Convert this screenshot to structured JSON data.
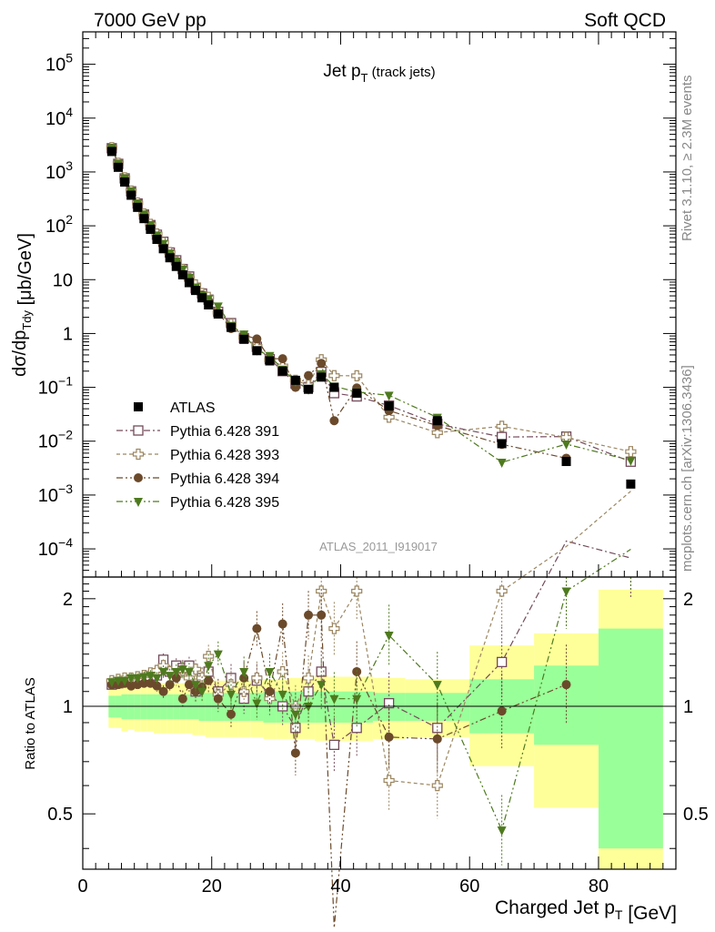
{
  "header": {
    "left": "7000 GeV pp",
    "right": "Soft QCD"
  },
  "side_labels": {
    "rivet": "Rivet 3.1.10, ≥ 2.3M events",
    "mcplots": "mcplots.cern.ch [arXiv:1306.3436]"
  },
  "analysis_id": "ATLAS_2011_I919017",
  "chart_data": {
    "type": "scatter",
    "title": "Jet p_T (track jets)",
    "xlabel": "Charged Jet p_T [GeV]",
    "ylabel": "dσ/dp_Tdy [μb/GeV]",
    "ratio_ylabel": "Ratio to ATLAS",
    "xlim": [
      0,
      92
    ],
    "ylim": [
      3e-05,
      400000
    ],
    "ratio_ylim": [
      0.35,
      2.3
    ],
    "yscale": "log",
    "grid": false,
    "legend_position": "bottom-left",
    "x_ticks": [
      "0",
      "20",
      "40",
      "60",
      "80"
    ],
    "y_ticks": [
      "10^-4",
      "10^-3",
      "10^-2",
      "10^-1",
      "1",
      "10",
      "10^2",
      "10^3",
      "10^4",
      "10^5"
    ],
    "ratio_ticks": [
      "0.5",
      "1",
      "2"
    ],
    "x": [
      4.5,
      5.5,
      6.5,
      7.5,
      8.5,
      9.5,
      10.5,
      11.5,
      12.5,
      13.5,
      14.5,
      15.5,
      16.5,
      17.5,
      18.5,
      19.5,
      21,
      23,
      25,
      27,
      29,
      31,
      33,
      35,
      37,
      39,
      42.5,
      47.5,
      55,
      65,
      75,
      85
    ],
    "x_bin_edges": [
      4,
      5,
      6,
      7,
      8,
      9,
      10,
      11,
      12,
      13,
      14,
      15,
      16,
      17,
      18,
      19,
      20,
      22,
      24,
      26,
      28,
      30,
      32,
      34,
      36,
      38,
      40,
      45,
      50,
      60,
      70,
      80,
      90
    ],
    "data_series": {
      "name": "ATLAS",
      "color": "#000000",
      "values": [
        2400,
        1220,
        650,
        370,
        220,
        136,
        86,
        56,
        37.5,
        25.5,
        17.6,
        12.3,
        8.8,
        6.3,
        4.6,
        3.4,
        2.3,
        1.3,
        0.78,
        0.48,
        0.31,
        0.2,
        0.135,
        0.092,
        0.155,
        0.1,
        0.078,
        0.045,
        0.024,
        0.009,
        0.0042,
        0.0016
      ],
      "band_inner": [
        [
          0.93,
          1.07
        ],
        [
          0.93,
          1.07
        ],
        [
          0.92,
          1.08
        ],
        [
          0.92,
          1.08
        ],
        [
          0.92,
          1.08
        ],
        [
          0.92,
          1.08
        ],
        [
          0.92,
          1.08
        ],
        [
          0.92,
          1.08
        ],
        [
          0.92,
          1.08
        ],
        [
          0.92,
          1.08
        ],
        [
          0.92,
          1.08
        ],
        [
          0.92,
          1.08
        ],
        [
          0.92,
          1.08
        ],
        [
          0.92,
          1.08
        ],
        [
          0.91,
          1.09
        ],
        [
          0.91,
          1.09
        ],
        [
          0.91,
          1.09
        ],
        [
          0.91,
          1.09
        ],
        [
          0.91,
          1.09
        ],
        [
          0.91,
          1.09
        ],
        [
          0.9,
          1.1
        ],
        [
          0.9,
          1.1
        ],
        [
          0.9,
          1.1
        ],
        [
          0.9,
          1.1
        ],
        [
          0.9,
          1.1
        ],
        [
          0.9,
          1.1
        ],
        [
          0.9,
          1.1
        ],
        [
          0.91,
          1.09
        ],
        [
          0.91,
          1.09
        ],
        [
          0.84,
          1.19
        ],
        [
          0.78,
          1.3
        ],
        [
          0.4,
          1.65
        ]
      ],
      "band_outer": [
        [
          0.87,
          1.15
        ],
        [
          0.87,
          1.15
        ],
        [
          0.85,
          1.16
        ],
        [
          0.86,
          1.16
        ],
        [
          0.85,
          1.16
        ],
        [
          0.85,
          1.16
        ],
        [
          0.85,
          1.16
        ],
        [
          0.84,
          1.16
        ],
        [
          0.84,
          1.16
        ],
        [
          0.84,
          1.16
        ],
        [
          0.84,
          1.16
        ],
        [
          0.84,
          1.16
        ],
        [
          0.84,
          1.16
        ],
        [
          0.83,
          1.17
        ],
        [
          0.83,
          1.17
        ],
        [
          0.82,
          1.17
        ],
        [
          0.82,
          1.18
        ],
        [
          0.82,
          1.18
        ],
        [
          0.82,
          1.18
        ],
        [
          0.82,
          1.18
        ],
        [
          0.81,
          1.19
        ],
        [
          0.81,
          1.19
        ],
        [
          0.81,
          1.2
        ],
        [
          0.81,
          1.2
        ],
        [
          0.8,
          1.22
        ],
        [
          0.8,
          1.21
        ],
        [
          0.8,
          1.21
        ],
        [
          0.81,
          1.2
        ],
        [
          0.82,
          1.19
        ],
        [
          0.68,
          1.48
        ],
        [
          0.52,
          1.6
        ],
        [
          0.33,
          2.12
        ]
      ]
    },
    "series": [
      {
        "name": "Pythia 6.428 391",
        "color": "#734a5b",
        "marker": "open-square",
        "dash": "dashdot",
        "ratio": [
          1.15,
          1.16,
          1.17,
          1.18,
          1.18,
          1.19,
          1.2,
          1.22,
          1.35,
          1.25,
          1.3,
          1.28,
          1.3,
          1.1,
          1.2,
          1.25,
          1.1,
          1.2,
          1.05,
          1.18,
          1.08,
          1.0,
          0.87,
          1.1,
          1.25,
          0.78,
          0.87,
          1.02,
          0.87,
          1.33,
          2.9,
          2.6
        ]
      },
      {
        "name": "Pythia 6.428 393",
        "color": "#9b8660",
        "marker": "open-cross",
        "dash": "dashed",
        "ratio": [
          1.18,
          1.19,
          1.2,
          1.2,
          1.21,
          1.22,
          1.24,
          1.26,
          1.3,
          1.25,
          1.22,
          1.26,
          1.2,
          1.27,
          1.2,
          1.38,
          1.08,
          1.15,
          1.1,
          1.2,
          1.05,
          1.25,
          1.0,
          1.2,
          2.1,
          1.65,
          2.1,
          0.62,
          0.6,
          2.1,
          2.8,
          4.0
        ]
      },
      {
        "name": "Pythia 6.428 394",
        "color": "#6b4a2b",
        "marker": "filled-circle",
        "dash": "dashdotdot",
        "ratio": [
          1.15,
          1.15,
          1.16,
          1.14,
          1.15,
          1.16,
          1.16,
          1.14,
          1.1,
          1.15,
          1.2,
          1.05,
          1.15,
          1.1,
          1.13,
          1.18,
          1.05,
          0.95,
          1.2,
          1.65,
          1.1,
          1.7,
          0.74,
          1.8,
          1.8,
          0.24,
          1.25,
          0.82,
          0.81,
          0.97,
          1.15,
          null
        ]
      },
      {
        "name": "Pythia 6.428 395",
        "color": "#4e7a1e",
        "marker": "filled-triangle-down",
        "dash": "dashdotdot",
        "ratio": [
          1.17,
          1.18,
          1.18,
          1.2,
          1.2,
          1.21,
          1.22,
          1.2,
          1.25,
          1.22,
          1.25,
          1.27,
          1.25,
          1.15,
          1.1,
          1.3,
          1.4,
          1.08,
          1.25,
          1.02,
          1.25,
          1.08,
          0.95,
          1.0,
          1.15,
          1.05,
          1.05,
          1.58,
          1.15,
          0.45,
          2.1,
          2.75
        ]
      }
    ]
  }
}
